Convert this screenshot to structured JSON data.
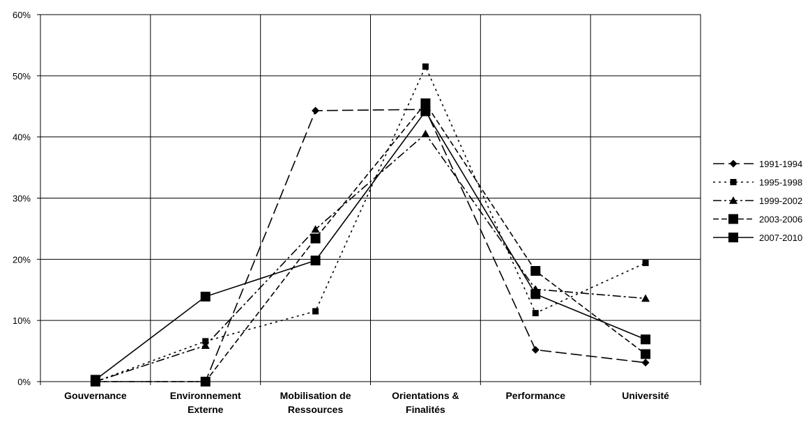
{
  "chart_data": {
    "type": "line",
    "categories": [
      [
        "Gouvernance"
      ],
      [
        "Environnement",
        "Externe"
      ],
      [
        "Mobilisation de",
        "Ressources"
      ],
      [
        "Orientations &",
        "Finalités"
      ],
      [
        "Performance"
      ],
      [
        "Université"
      ]
    ],
    "yticks": [
      "0%",
      "10%",
      "20%",
      "30%",
      "40%",
      "50%",
      "60%"
    ],
    "ylim": [
      0,
      60
    ],
    "grid": true,
    "legend_position": "right",
    "series": [
      {
        "name": "1991-1994",
        "values": [
          0,
          0,
          44.3,
          44.5,
          5.2,
          3.1
        ],
        "marker": "diamond",
        "dash": "16,6"
      },
      {
        "name": "1995-1998",
        "values": [
          0,
          6.6,
          11.5,
          51.5,
          11.2,
          19.4
        ],
        "marker": "square-small",
        "dash": "3,5"
      },
      {
        "name": "1999-2002",
        "values": [
          0,
          5.9,
          24.9,
          40.5,
          15.1,
          13.6
        ],
        "marker": "triangle",
        "dash": "12,4,3,4"
      },
      {
        "name": "2003-2006",
        "values": [
          0,
          0,
          23.4,
          45.5,
          18.1,
          4.5
        ],
        "marker": "square",
        "dash": "8,4"
      },
      {
        "name": "2007-2010",
        "values": [
          0.3,
          13.9,
          19.8,
          44.2,
          14.3,
          6.9
        ],
        "marker": "square",
        "dash": "none"
      }
    ]
  }
}
